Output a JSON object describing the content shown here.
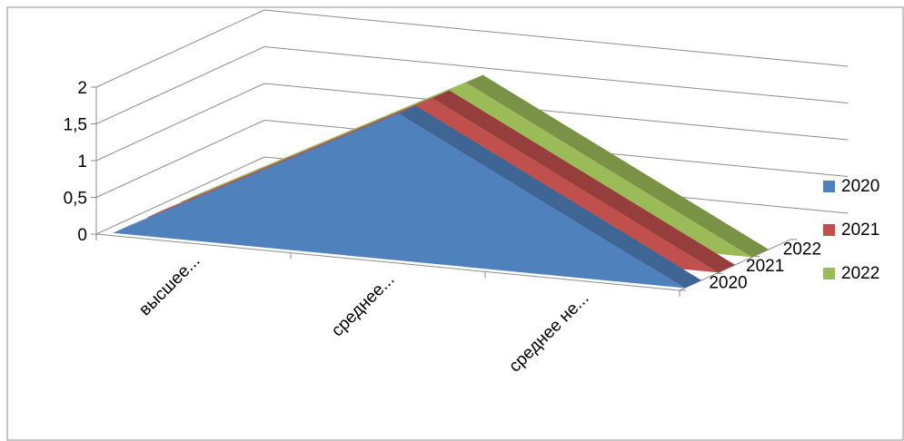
{
  "chart_data": {
    "type": "area",
    "subtype": "3d-area",
    "title": "",
    "xlabel": "",
    "ylabel": "",
    "categories": [
      "высшее...",
      "среднее...",
      "среднее не..."
    ],
    "depth_labels": [
      "2022",
      "2021",
      "2020"
    ],
    "series": [
      {
        "name": "2020",
        "color": "#4F81BD",
        "values": [
          0,
          2,
          0
        ]
      },
      {
        "name": "2021",
        "color": "#C0504D",
        "values": [
          0,
          2,
          0
        ]
      },
      {
        "name": "2022",
        "color": "#9BBB59",
        "values": [
          0,
          2,
          0
        ]
      }
    ],
    "y_ticks": [
      "0",
      "0,5",
      "1",
      "1,5",
      "2"
    ],
    "ylim": [
      0,
      2
    ],
    "grid": true,
    "legend_position": "right"
  }
}
